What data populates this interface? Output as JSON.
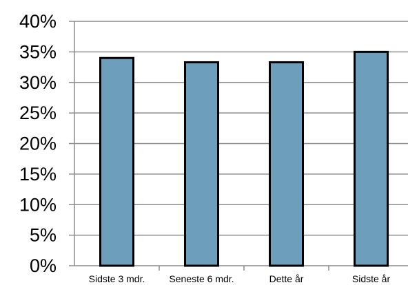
{
  "chart_data": {
    "type": "bar",
    "title": "",
    "xlabel": "",
    "ylabel": "",
    "categories": [
      "Sidste 3 mdr.",
      "Seneste 6 mdr.",
      "Dette år",
      "Sidste år"
    ],
    "values": [
      34.0,
      33.3,
      33.3,
      35.0
    ],
    "ylim": [
      0,
      40
    ],
    "yticks": [
      0,
      5,
      10,
      15,
      20,
      25,
      30,
      35,
      40
    ],
    "ytick_labels": [
      "0%",
      "5%",
      "10%",
      "15%",
      "20%",
      "25%",
      "30%",
      "35%",
      "40%"
    ],
    "grid": true,
    "legend": "none",
    "colors": {
      "bar_fill": "#6d9fbd",
      "bar_stroke": "#000000",
      "grid": "#8c8c8c",
      "axis": "#8c8c8c",
      "background": "#ffffff"
    }
  }
}
